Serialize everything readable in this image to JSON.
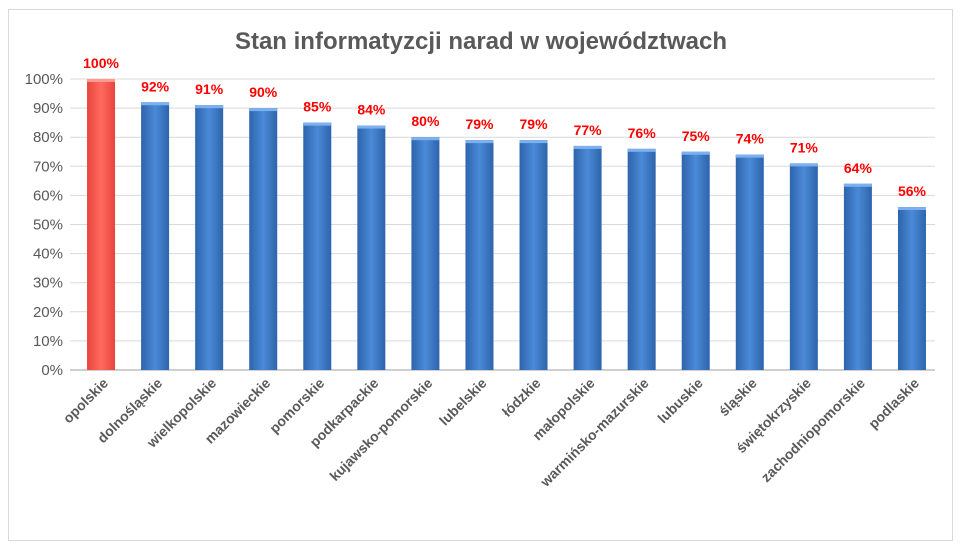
{
  "chart_data": {
    "type": "bar",
    "title": "Stan informatyzcji narad w województwach",
    "xlabel": "",
    "ylabel": "",
    "ylim": [
      0,
      100
    ],
    "yticks": [
      0,
      10,
      20,
      30,
      40,
      50,
      60,
      70,
      80,
      90,
      100
    ],
    "ytick_labels": [
      "0%",
      "10%",
      "20%",
      "30%",
      "40%",
      "50%",
      "60%",
      "70%",
      "80%",
      "90%",
      "100%"
    ],
    "grid": true,
    "legend": "none",
    "categories": [
      "opolskie",
      "dolnośląskie",
      "wielkopolskie",
      "mazowieckie",
      "pomorskie",
      "podkarpackie",
      "kujawsko-pomorskie",
      "lubelskie",
      "łódzkie",
      "małopolskie",
      "warmińsko-mazurskie",
      "lubuskie",
      "śląskie",
      "świętokrzyskie",
      "zachodniopomorskie",
      "podlaskie"
    ],
    "values": [
      100,
      92,
      91,
      90,
      85,
      84,
      80,
      79,
      79,
      77,
      76,
      75,
      74,
      71,
      64,
      56
    ],
    "data_labels": [
      "100%",
      "92%",
      "91%",
      "90%",
      "85%",
      "84%",
      "80%",
      "79%",
      "79%",
      "77%",
      "76%",
      "75%",
      "74%",
      "71%",
      "64%",
      "56%"
    ],
    "highlight_index": 0,
    "colors": {
      "bar": "#3f7fcf",
      "highlight": "#ff5a4f",
      "data_label": "#ff0000",
      "grid": "#d9d9d9",
      "text": "#595959"
    }
  }
}
